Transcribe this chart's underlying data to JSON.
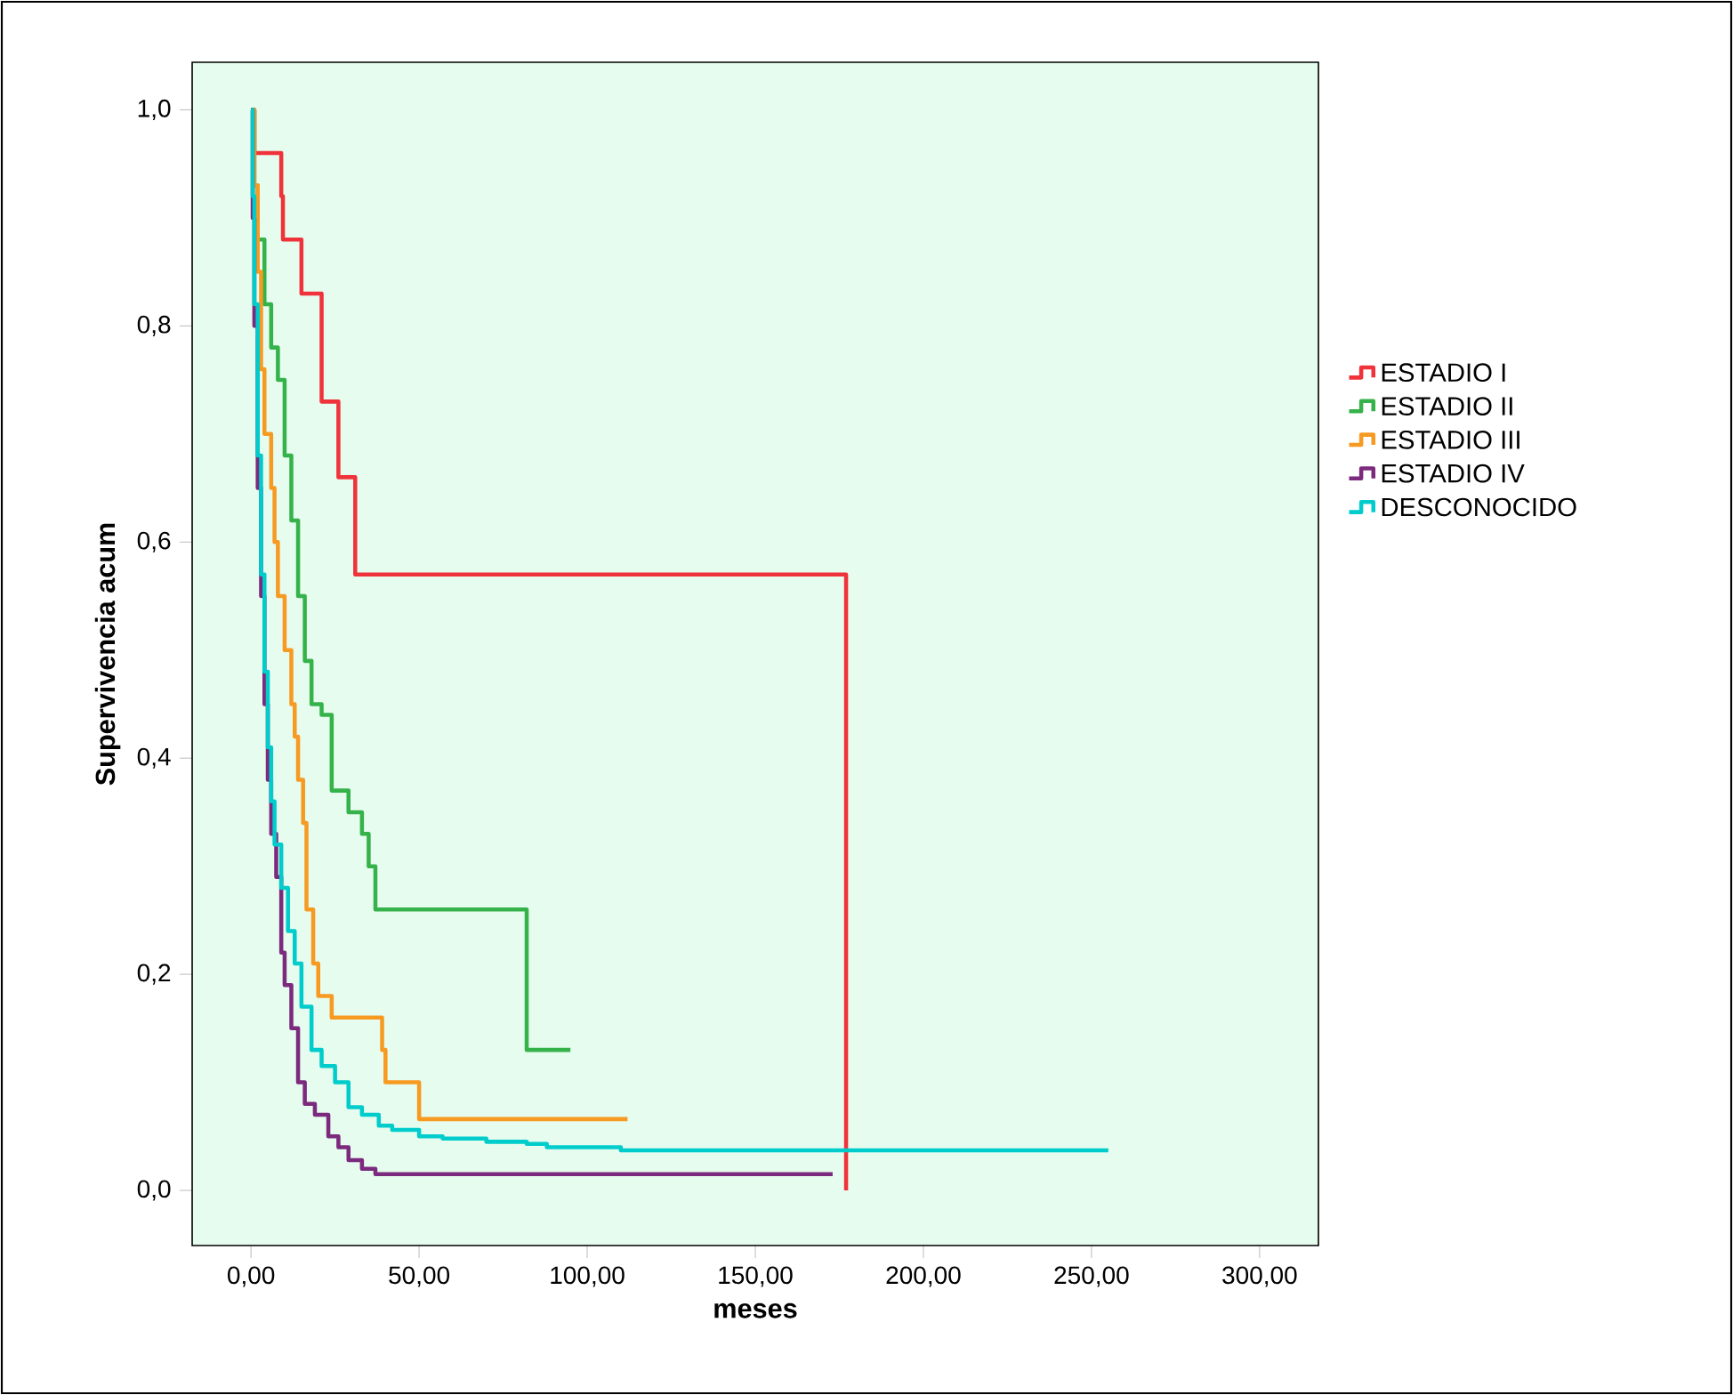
{
  "chart_data": {
    "type": "step",
    "xlabel": "meses",
    "ylabel": "Supervivencia acum",
    "xlim": [
      -17.5,
      317.5
    ],
    "ylim": [
      -0.051,
      1.044
    ],
    "xticks": [
      {
        "value": 0,
        "label": "0,00"
      },
      {
        "value": 50,
        "label": "50,00"
      },
      {
        "value": 100,
        "label": "100,00"
      },
      {
        "value": 150,
        "label": "150,00"
      },
      {
        "value": 200,
        "label": "200,00"
      },
      {
        "value": 250,
        "label": "250,00"
      },
      {
        "value": 300,
        "label": "300,00"
      }
    ],
    "yticks": [
      {
        "value": 0,
        "label": "0,0"
      },
      {
        "value": 0.2,
        "label": "0,2"
      },
      {
        "value": 0.4,
        "label": "0,4"
      },
      {
        "value": 0.6,
        "label": "0,6"
      },
      {
        "value": 0.8,
        "label": "0,8"
      },
      {
        "value": 1.0,
        "label": "1,0"
      }
    ],
    "legend": "right",
    "grid": false,
    "marker": "none",
    "line_style": "solid",
    "series": [
      {
        "name": "ESTADIO I",
        "color": "#f0333a",
        "x": [
          0,
          1,
          9,
          9.5,
          15,
          21,
          26,
          31,
          177
        ],
        "values": [
          1.0,
          0.96,
          0.92,
          0.88,
          0.83,
          0.73,
          0.66,
          0.57,
          0.0
        ]
      },
      {
        "name": "ESTADIO II",
        "color": "#35b34a",
        "x": [
          0,
          1,
          2,
          4,
          6,
          8,
          10,
          12,
          14,
          16,
          18,
          21,
          24,
          29,
          33,
          35,
          37,
          82,
          95
        ],
        "values": [
          1.0,
          0.93,
          0.88,
          0.82,
          0.78,
          0.75,
          0.68,
          0.62,
          0.55,
          0.49,
          0.45,
          0.44,
          0.37,
          0.35,
          0.33,
          0.3,
          0.26,
          0.13,
          0.13
        ]
      },
      {
        "name": "ESTADIO III",
        "color": "#f79a22",
        "x": [
          0,
          1,
          2,
          3,
          4,
          6,
          7,
          8,
          10,
          12,
          13,
          14,
          15.5,
          16.5,
          18.5,
          20,
          24,
          39,
          40,
          50,
          112
        ],
        "values": [
          1.0,
          0.93,
          0.85,
          0.76,
          0.7,
          0.65,
          0.6,
          0.55,
          0.5,
          0.45,
          0.42,
          0.38,
          0.34,
          0.26,
          0.21,
          0.18,
          0.16,
          0.13,
          0.1,
          0.066,
          0.066
        ]
      },
      {
        "name": "ESTADIO IV",
        "color": "#7b2a7e",
        "x": [
          0,
          0.5,
          1,
          2,
          3,
          4,
          5,
          6,
          7.5,
          9,
          10,
          12,
          14,
          16,
          19,
          23,
          26,
          29,
          33,
          37,
          173
        ],
        "values": [
          1.0,
          0.9,
          0.8,
          0.65,
          0.55,
          0.45,
          0.38,
          0.33,
          0.29,
          0.22,
          0.19,
          0.15,
          0.1,
          0.08,
          0.07,
          0.05,
          0.04,
          0.028,
          0.02,
          0.015,
          0.015
        ]
      },
      {
        "name": "DESCONOCIDO",
        "color": "#00cccc",
        "x": [
          0,
          0.5,
          1,
          2,
          3,
          4,
          5,
          6,
          7,
          9,
          11,
          13,
          15,
          18,
          21,
          25,
          29,
          33,
          38,
          42,
          50,
          57,
          70,
          82,
          88,
          110,
          255
        ],
        "values": [
          1.0,
          0.92,
          0.82,
          0.68,
          0.57,
          0.48,
          0.41,
          0.36,
          0.32,
          0.28,
          0.24,
          0.21,
          0.17,
          0.13,
          0.115,
          0.1,
          0.077,
          0.07,
          0.06,
          0.056,
          0.05,
          0.048,
          0.045,
          0.043,
          0.04,
          0.037,
          0.037
        ]
      }
    ]
  }
}
